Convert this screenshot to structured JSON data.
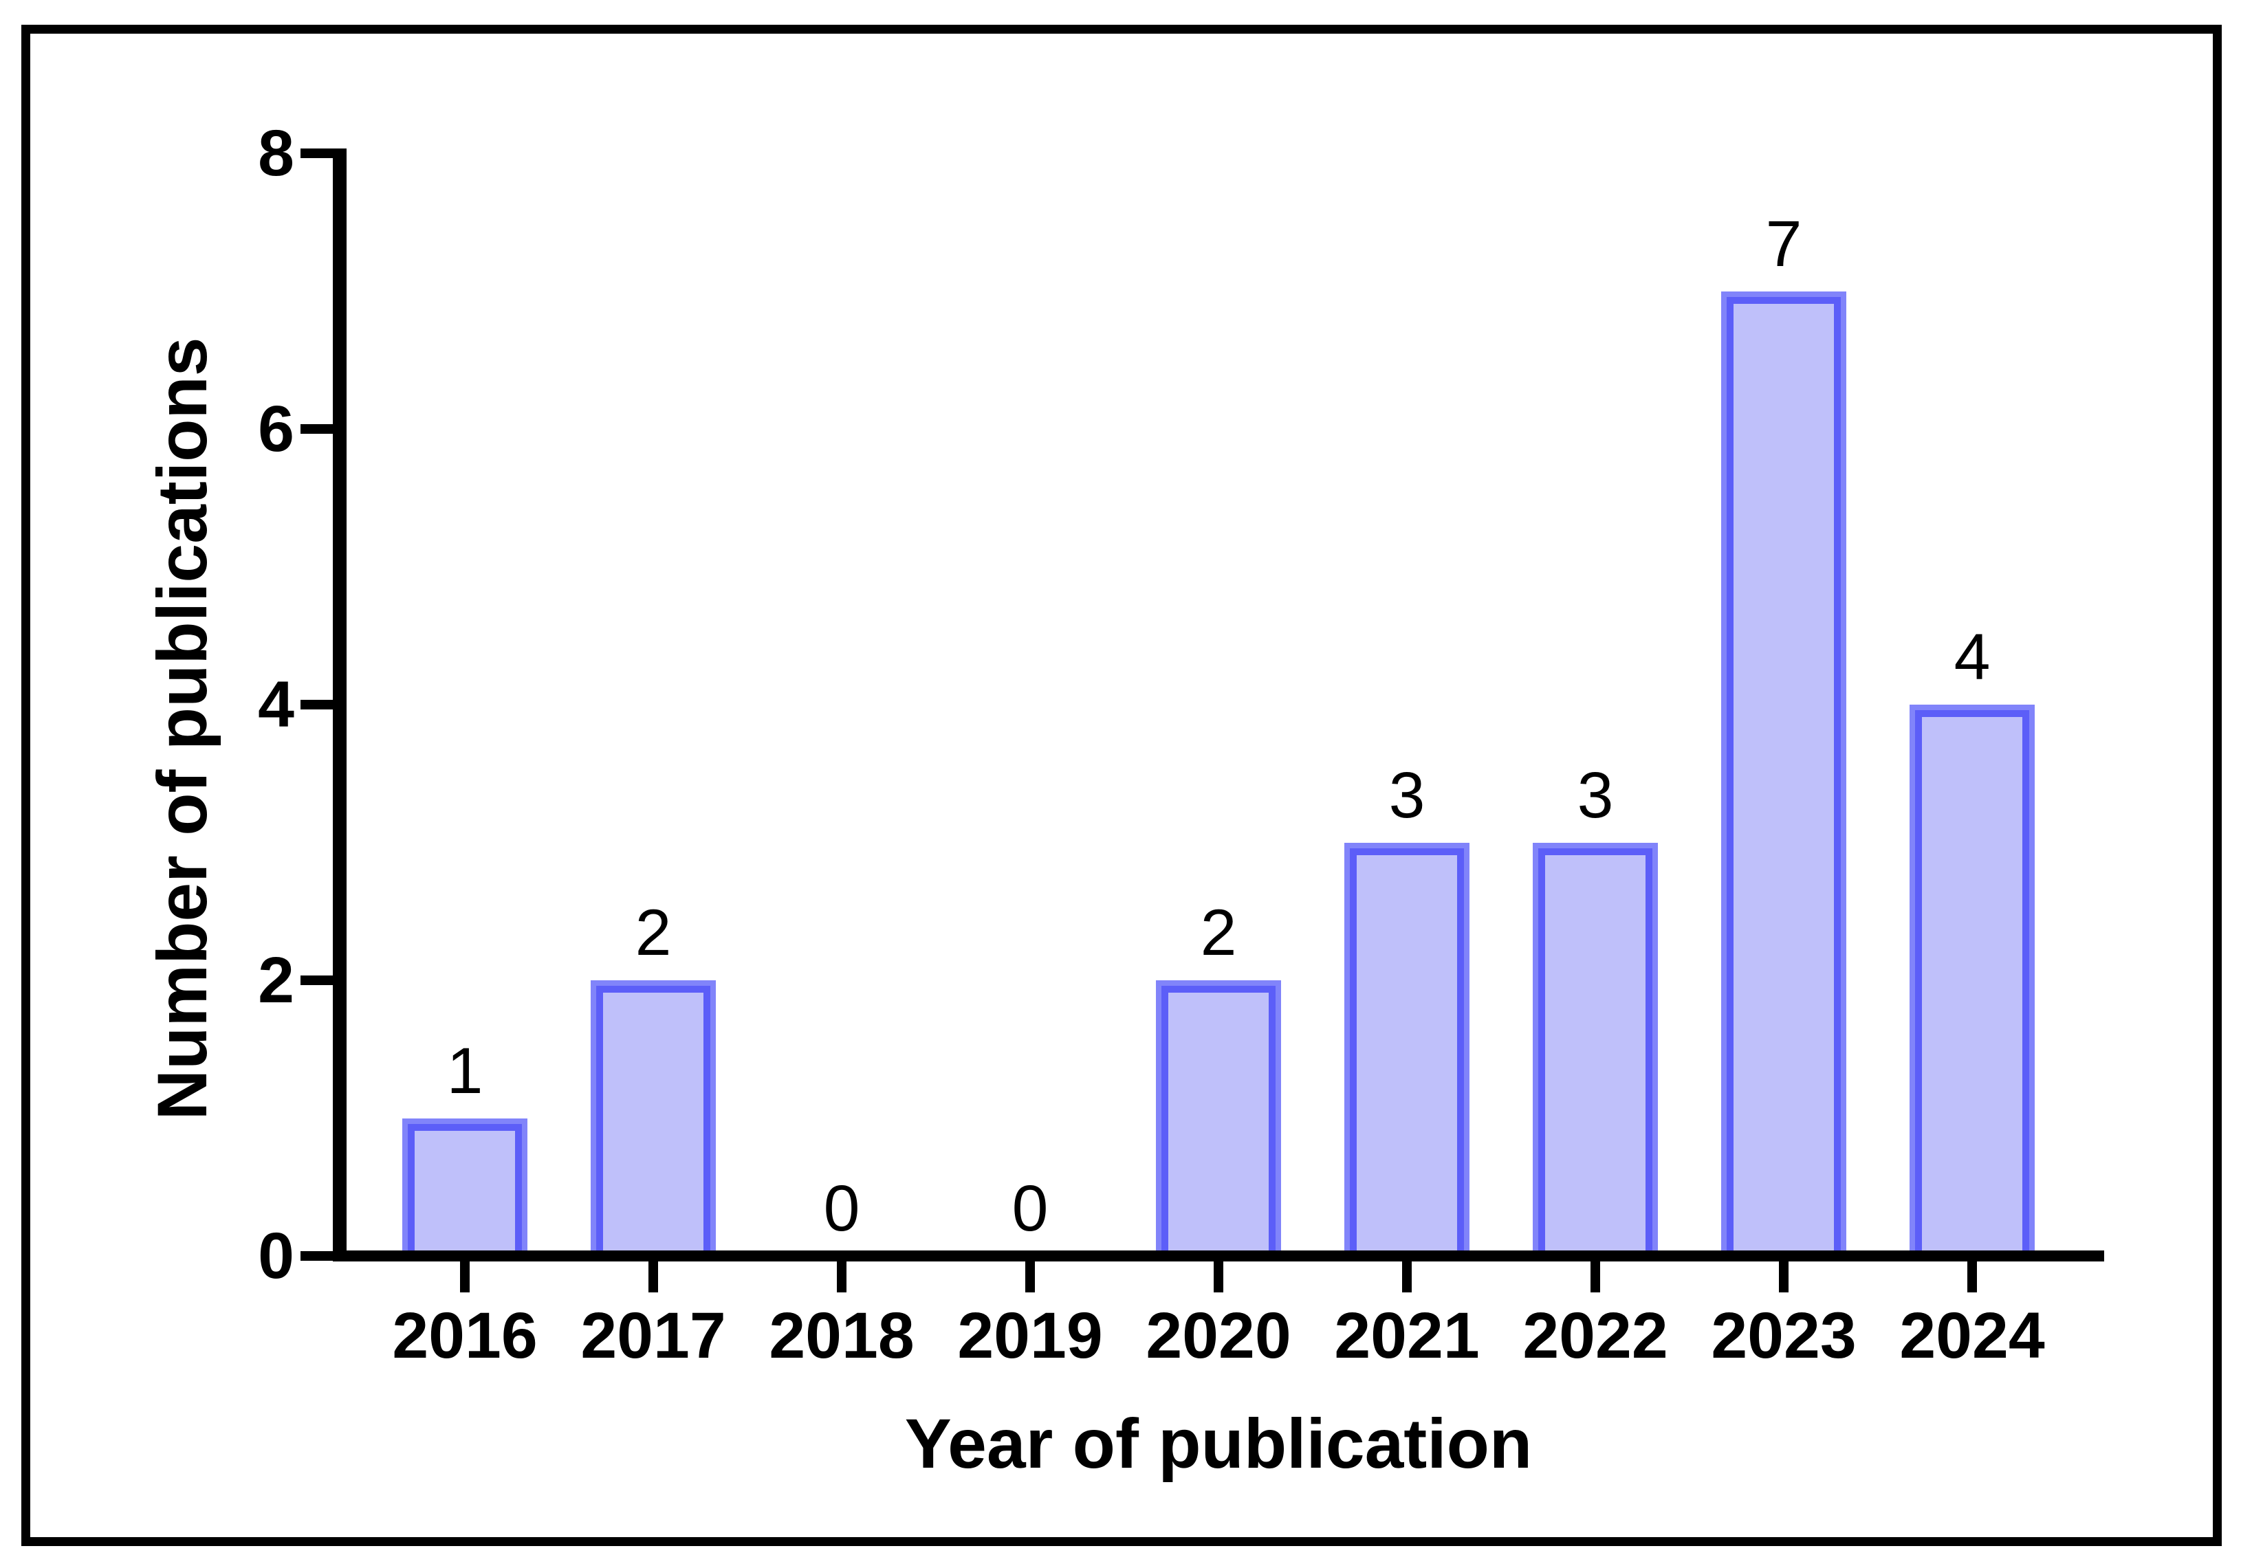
{
  "chart_data": {
    "type": "bar",
    "title": "",
    "categories": [
      "2016",
      "2017",
      "2018",
      "2019",
      "2020",
      "2021",
      "2022",
      "2023",
      "2024"
    ],
    "values": [
      1,
      2,
      0,
      0,
      2,
      3,
      3,
      7,
      4
    ],
    "bar_value_labels": [
      "1",
      "2",
      "0",
      "0",
      "2",
      "3",
      "3",
      "7",
      "4"
    ],
    "xlabel": "Year of publication",
    "ylabel": "Number of publications",
    "ylim": [
      0,
      8
    ],
    "yticks": [
      0,
      2,
      4,
      6,
      8
    ],
    "grid": false,
    "legend_position": "none",
    "colors": {
      "bar_fill": "#bfc0fa",
      "bar_border_inner": "#5c5ef8",
      "bar_border_outer": "#8184fa",
      "axis": "#000000",
      "frame": "#000000",
      "text": "#000000"
    }
  }
}
